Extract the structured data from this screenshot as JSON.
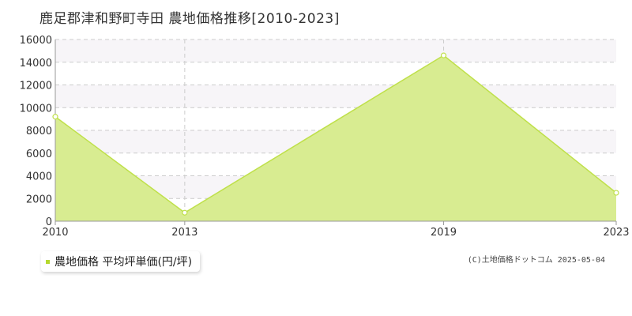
{
  "chart_data": {
    "type": "area",
    "title": "鹿足郡津和野町寺田 農地価格推移[2010-2023]",
    "x": [
      "2010",
      "2013",
      "2019",
      "2023"
    ],
    "series": [
      {
        "name": "農地価格 平均坪単価(円/坪)",
        "values": [
          9200,
          750,
          14600,
          2500
        ]
      }
    ],
    "y_ticks": [
      "0",
      "2000",
      "4000",
      "6000",
      "8000",
      "10000",
      "12000",
      "14000",
      "16000"
    ],
    "ylim": [
      0,
      16000
    ],
    "grid": true,
    "legend_position": "bottom-left"
  },
  "colors": {
    "area_fill": "#d8ec91",
    "line": "#bfe04a",
    "marker_fill": "#ffffff",
    "band": "#f7f5f8",
    "grid": "#cccccc",
    "axis": "#999999",
    "legend_swatch": "#b5d82e"
  },
  "copyright": "(C)土地価格ドットコム 2025-05-04"
}
